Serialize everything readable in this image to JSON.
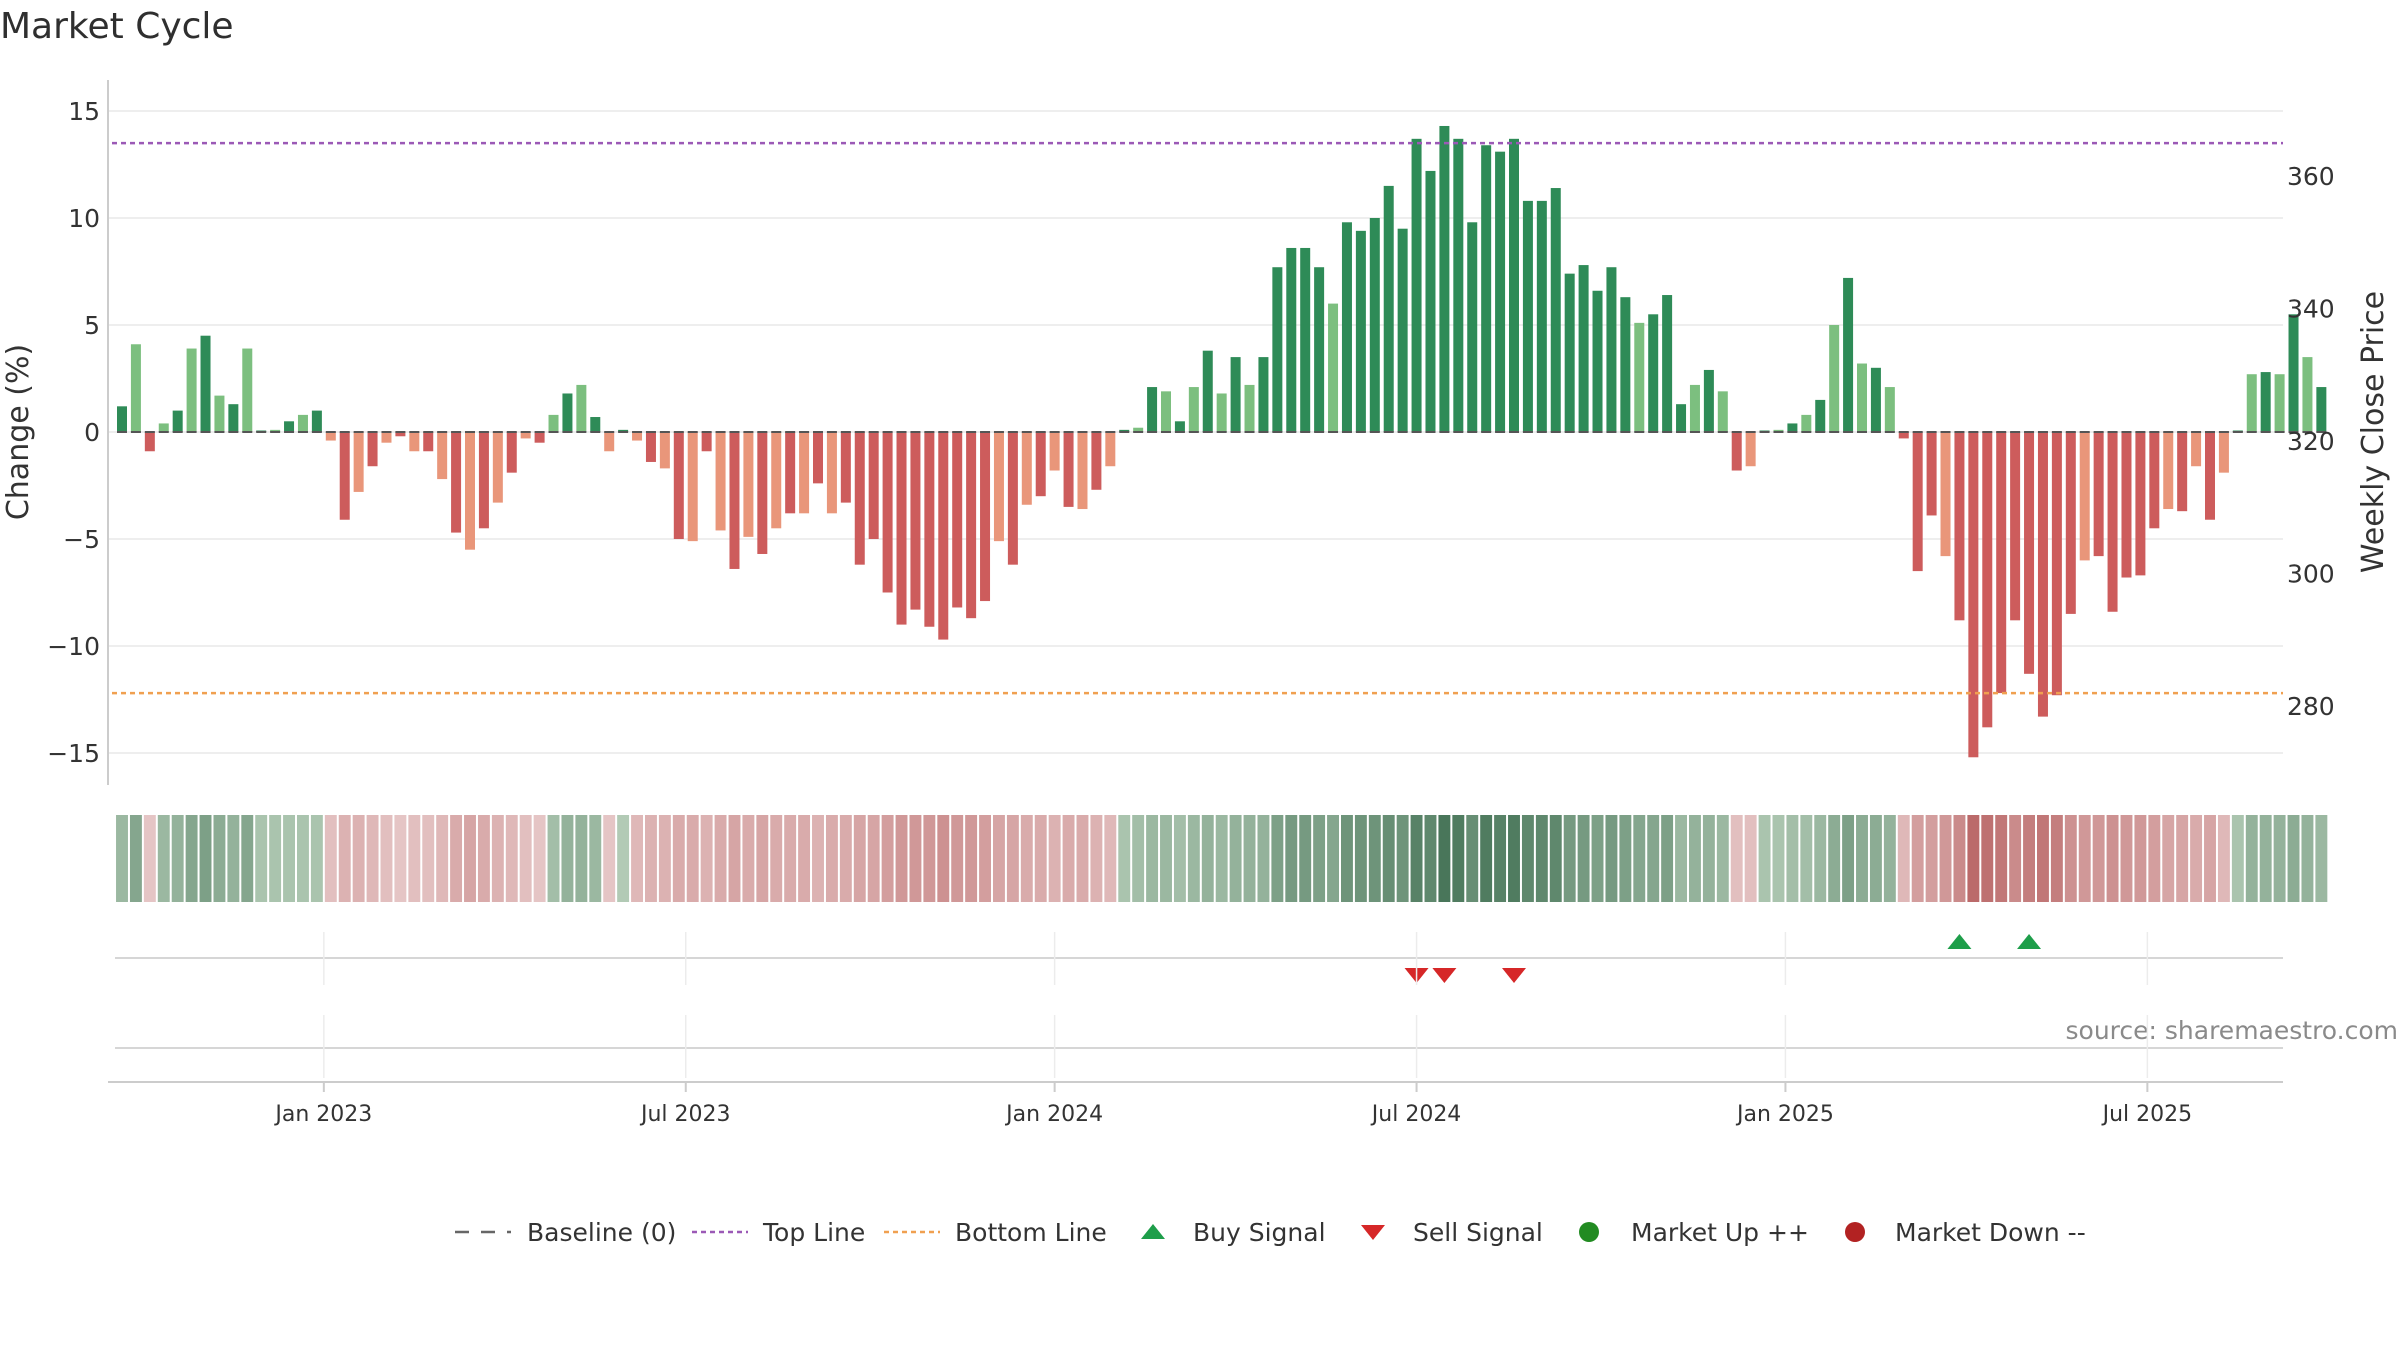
{
  "title": "Market Cycle",
  "source": "source: sharemaestro.com",
  "colors": {
    "up_strong": "#2e8b57",
    "up_light": "#7cbf7f",
    "down_strong": "#cd5c5c",
    "down_light": "#e9967a",
    "top_line": "#9b59b6",
    "bottom_line": "#f0a050",
    "baseline": "#666666",
    "buy": "#1e9e4a",
    "sell": "#d62728",
    "market_up": "#228b22",
    "market_down": "#b22222"
  },
  "chart_data": {
    "type": "bar",
    "ylabel": "Change (%)",
    "ylabel_right": "Weekly Close Price",
    "ylim": [
      -16,
      16
    ],
    "yticks": [
      -15,
      -10,
      -5,
      0,
      5,
      10,
      15
    ],
    "yticks_right": [
      280,
      300,
      320,
      340,
      360
    ],
    "top_line": 13.5,
    "bottom_line": -12.2,
    "x_ticks": [
      {
        "label": "Jan 2023",
        "week": 14.5
      },
      {
        "label": "Jul 2023",
        "week": 40.5
      },
      {
        "label": "Jan 2024",
        "week": 67
      },
      {
        "label": "Jul 2024",
        "week": 93
      },
      {
        "label": "Jan 2025",
        "week": 119.5
      },
      {
        "label": "Jul 2025",
        "week": 145.5
      }
    ],
    "values": [
      1.2,
      4.1,
      -0.9,
      0.4,
      1.0,
      3.9,
      4.5,
      1.7,
      1.3,
      3.9,
      0,
      0.1,
      0.5,
      0.8,
      1.0,
      -0.4,
      -4.1,
      -2.8,
      -1.6,
      -0.5,
      -0.2,
      -0.9,
      -0.9,
      -2.2,
      -4.7,
      -5.5,
      -4.5,
      -3.3,
      -1.9,
      -0.3,
      -0.5,
      0.8,
      1.8,
      2.2,
      0.7,
      -0.9,
      0.1,
      -0.4,
      -1.4,
      -1.7,
      -5.0,
      -5.1,
      -0.9,
      -4.6,
      -6.4,
      -4.9,
      -5.7,
      -4.5,
      -3.8,
      -3.8,
      -2.4,
      -3.8,
      -3.3,
      -6.2,
      -5.0,
      -7.5,
      -9.0,
      -8.3,
      -9.1,
      -9.7,
      -8.2,
      -8.7,
      -7.9,
      -5.1,
      -6.2,
      -3.4,
      -3.0,
      -1.8,
      -3.5,
      -3.6,
      -2.7,
      -1.6,
      0.1,
      0.2,
      2.1,
      1.9,
      0.5,
      2.1,
      3.8,
      1.8,
      3.5,
      2.2,
      3.5,
      7.7,
      8.6,
      8.6,
      7.7,
      6.0,
      9.8,
      9.4,
      10.0,
      11.5,
      9.5,
      13.7,
      12.2,
      14.3,
      13.7,
      9.8,
      13.4,
      13.1,
      13.7,
      10.8,
      10.8,
      11.4,
      7.4,
      7.8,
      6.6,
      7.7,
      6.3,
      5.1,
      5.5,
      6.4,
      1.3,
      2.2,
      2.9,
      1.9,
      -1.8,
      -1.6,
      0,
      0.1,
      0.4,
      0.8,
      1.5,
      5.0,
      7.2,
      3.2,
      3.0,
      2.1,
      -0.3,
      -6.5,
      -3.9,
      -5.8,
      -8.8,
      -15.2,
      -13.8,
      -12.2,
      -8.8,
      -11.3,
      -13.3,
      -12.3,
      -8.5,
      -6.0,
      -5.8,
      -8.4,
      -6.8,
      -6.7,
      -4.5,
      -3.6,
      -3.7,
      -1.6,
      -4.1,
      -1.9,
      0,
      2.7,
      2.8,
      2.7,
      5.5,
      3.5,
      2.1
    ],
    "heat_strip": [
      0.3,
      0.45,
      -0.1,
      0.3,
      0.35,
      0.45,
      0.5,
      0.4,
      0.35,
      0.45,
      0.2,
      0.2,
      0.2,
      0.2,
      0.2,
      -0.15,
      -0.25,
      -0.25,
      -0.2,
      -0.15,
      -0.1,
      -0.15,
      -0.15,
      -0.2,
      -0.3,
      -0.35,
      -0.3,
      -0.25,
      -0.2,
      -0.15,
      -0.1,
      0.25,
      0.35,
      0.35,
      0.3,
      -0.1,
      0.15,
      -0.2,
      -0.25,
      -0.25,
      -0.3,
      -0.3,
      -0.25,
      -0.3,
      -0.35,
      -0.3,
      -0.35,
      -0.3,
      -0.3,
      -0.3,
      -0.25,
      -0.3,
      -0.3,
      -0.35,
      -0.35,
      -0.4,
      -0.45,
      -0.45,
      -0.45,
      -0.5,
      -0.45,
      -0.45,
      -0.4,
      -0.35,
      -0.35,
      -0.3,
      -0.3,
      -0.25,
      -0.3,
      -0.3,
      -0.25,
      -0.2,
      0.2,
      0.25,
      0.3,
      0.3,
      0.25,
      0.3,
      0.35,
      0.3,
      0.35,
      0.35,
      0.35,
      0.5,
      0.55,
      0.55,
      0.5,
      0.45,
      0.6,
      0.6,
      0.6,
      0.65,
      0.6,
      0.75,
      0.7,
      0.85,
      0.8,
      0.65,
      0.8,
      0.75,
      0.8,
      0.7,
      0.7,
      0.7,
      0.55,
      0.55,
      0.5,
      0.55,
      0.5,
      0.45,
      0.45,
      0.5,
      0.3,
      0.35,
      0.35,
      0.3,
      -0.15,
      -0.15,
      0.2,
      0.2,
      0.25,
      0.25,
      0.3,
      0.4,
      0.5,
      0.4,
      0.4,
      0.35,
      -0.2,
      -0.4,
      -0.4,
      -0.45,
      -0.55,
      -0.8,
      -0.75,
      -0.7,
      -0.55,
      -0.65,
      -0.7,
      -0.65,
      -0.5,
      -0.45,
      -0.45,
      -0.5,
      -0.45,
      -0.45,
      -0.4,
      -0.35,
      -0.35,
      -0.3,
      -0.35,
      -0.2,
      0.2,
      0.35,
      0.35,
      0.35,
      0.4,
      0.35,
      0.3
    ],
    "sell_signals": [
      93,
      95,
      100
    ],
    "buy_signals": [
      132,
      137
    ],
    "legend": [
      "Baseline (0)",
      "Top Line",
      "Bottom Line",
      "Buy Signal",
      "Sell Signal",
      "Market Up ++",
      "Market Down --"
    ]
  }
}
